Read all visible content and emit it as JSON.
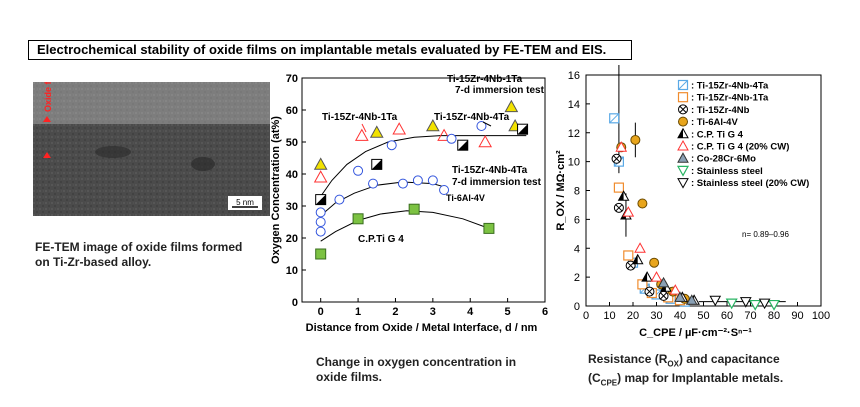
{
  "title": "Electrochemical stability of oxide films on implantable metals evaluated by FE-TEM and EIS.",
  "tem": {
    "oxide_label": "Oxide film",
    "scale_bar": "5 nm",
    "caption_line1": "FE-TEM image of oxide films formed",
    "caption_line2": "on Ti-Zr-based alloy."
  },
  "caption_middle": {
    "line1": "Change in oxygen concentration in",
    "line2": "oxide films."
  },
  "caption_right": {
    "line1": "Resistance (R",
    "line1_sub": "OX",
    "line1_end": ") and capacitance",
    "line2_start": "(C",
    "line2_sub": "CPE",
    "line2_end": ") map for Implantable metals."
  },
  "colors": {
    "triangle_yellow": "#f2e200",
    "circle_blue": "#3355dd",
    "square_green": "#7cc242",
    "triangle_red": "#ff3333",
    "orange": "#f08c2d",
    "cyan": "#5aa9e6",
    "green_tri": "#28b463"
  },
  "chart_data": [
    {
      "type": "scatter",
      "xlabel": "Distance from Oxide / Metal Interface, d / nm",
      "ylabel": "Oxygen Concentration (at%)",
      "xlim": [
        -0.5,
        6
      ],
      "ylim": [
        0,
        70
      ],
      "xticks": [
        0,
        1,
        2,
        3,
        4,
        5,
        6
      ],
      "yticks": [
        0,
        10,
        20,
        30,
        40,
        50,
        60,
        70
      ],
      "annotations": [
        "Ti-15Zr-4Nb-1Ta",
        "Ti-15Zr-4Nb-1Ta",
        "7-d immersion test",
        "Ti-15Zr-4Nb-4Ta",
        "Ti-15Zr-4Nb-4Ta",
        "7-d immersion test",
        "Ti-6Al-4V",
        "C.P.Ti G 4"
      ],
      "series": [
        {
          "name": "Ti-15Zr-4Nb-1Ta",
          "marker": "triangle-yellow",
          "points": [
            [
              0,
              43
            ],
            [
              1.5,
              53
            ],
            [
              3,
              55
            ],
            [
              5.2,
              55
            ]
          ]
        },
        {
          "name": "Ti-15Zr-4Nb-1Ta 7-d",
          "marker": "triangle-yellow",
          "points": [
            [
              5.1,
              61
            ]
          ]
        },
        {
          "name": "Ti-15Zr-4Nb-4Ta",
          "marker": "triangle-red",
          "points": [
            [
              0,
              39
            ],
            [
              1.1,
              52
            ],
            [
              2.1,
              54
            ],
            [
              3.3,
              52
            ],
            [
              4.4,
              50
            ]
          ]
        },
        {
          "name": "Ti-6Al-4V",
          "marker": "circle-blue",
          "points": [
            [
              0,
              28
            ],
            [
              0,
              25
            ],
            [
              0,
              22
            ],
            [
              0.5,
              32
            ],
            [
              1,
              41
            ],
            [
              1.4,
              37
            ],
            [
              1.9,
              49
            ],
            [
              2.2,
              37
            ],
            [
              2.6,
              38
            ],
            [
              3,
              38
            ],
            [
              3.3,
              35
            ],
            [
              3.5,
              51
            ],
            [
              4.3,
              55
            ]
          ]
        },
        {
          "name": "Ti-15Zr-4Nb-4Ta 7-d",
          "marker": "square-halftone",
          "points": [
            [
              0,
              32
            ],
            [
              1.5,
              43
            ],
            [
              3.8,
              49
            ],
            [
              5.4,
              54
            ]
          ]
        },
        {
          "name": "C.P.Ti G 4",
          "marker": "square-green",
          "points": [
            [
              0,
              15
            ],
            [
              1,
              26
            ],
            [
              2.5,
              29
            ],
            [
              4.5,
              23
            ]
          ]
        }
      ]
    },
    {
      "type": "scatter",
      "xlabel": "C_CPE / µF·cm⁻²·Sⁿ⁻¹",
      "ylabel": "R_OX / MΩ·cm²",
      "xlim": [
        0,
        100
      ],
      "ylim": [
        0,
        16
      ],
      "xticks": [
        0,
        10,
        20,
        30,
        40,
        50,
        60,
        70,
        80,
        90,
        100
      ],
      "yticks": [
        0,
        2,
        4,
        6,
        8,
        10,
        12,
        14,
        16
      ],
      "annotation": "n= 0.89–0.96",
      "legend": [
        ": Ti-15Zr-4Nb-4Ta",
        ": Ti-15Zr-4Nb-1Ta",
        ": Ti-15Zr-4Nb",
        ": Ti-6Al-4V",
        ": C.P. Ti G 4",
        ": C.P. Ti G 4 (20% CW)",
        ": Co-28Cr-6Mo",
        ": Stainless steel",
        ": Stainless steel (20% CW)"
      ],
      "series": [
        {
          "name": "Ti-15Zr-4Nb-4Ta",
          "points": [
            [
              12,
              13
            ],
            [
              14,
              10
            ],
            [
              20,
              3
            ],
            [
              25,
              1.2
            ],
            [
              30,
              0.8
            ],
            [
              36,
              0.5
            ],
            [
              42,
              0.3
            ]
          ]
        },
        {
          "name": "Ti-15Zr-4Nb-1Ta",
          "points": [
            [
              14,
              8.2
            ],
            [
              18,
              3.5
            ],
            [
              24,
              1.5
            ],
            [
              28,
              0.9
            ],
            [
              35,
              0.6
            ],
            [
              40,
              0.4
            ]
          ]
        },
        {
          "name": "Ti-15Zr-4Nb",
          "points": [
            [
              13,
              10.2
            ],
            [
              14,
              6.8
            ],
            [
              19,
              2.8
            ],
            [
              27,
              1
            ],
            [
              33,
              0.7
            ]
          ]
        },
        {
          "name": "Ti-6Al-4V",
          "points": [
            [
              15,
              11
            ],
            [
              21,
              11.5
            ],
            [
              24,
              7.1
            ],
            [
              29,
              3
            ],
            [
              32,
              1.5
            ],
            [
              37,
              1
            ],
            [
              42,
              0.5
            ]
          ]
        },
        {
          "name": "C.P. Ti G 4",
          "points": [
            [
              16,
              7.6
            ],
            [
              17,
              6.3
            ],
            [
              22,
              3.2
            ],
            [
              26,
              2
            ],
            [
              34,
              1.3
            ],
            [
              41,
              0.6
            ],
            [
              46,
              0.4
            ]
          ]
        },
        {
          "name": "C.P. Ti G 4 (20% CW)",
          "points": [
            [
              15,
              11
            ],
            [
              18,
              6.5
            ],
            [
              23,
              4
            ],
            [
              30,
              2
            ],
            [
              38,
              1.1
            ]
          ]
        },
        {
          "name": "Co-28Cr-6Mo",
          "points": [
            [
              33,
              1.6
            ],
            [
              40,
              0.6
            ],
            [
              45,
              0.4
            ]
          ]
        },
        {
          "name": "Stainless steel",
          "points": [
            [
              62,
              0.2
            ],
            [
              72,
              0.1
            ],
            [
              80,
              0.1
            ]
          ]
        },
        {
          "name": "Stainless steel (20% CW)",
          "points": [
            [
              55,
              0.4
            ],
            [
              68,
              0.3
            ],
            [
              76,
              0.2
            ]
          ]
        }
      ]
    }
  ]
}
